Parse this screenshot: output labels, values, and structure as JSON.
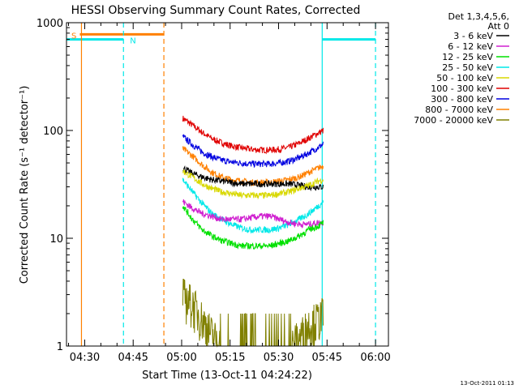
{
  "chart_data": {
    "type": "line",
    "title": "HESSI Observing Summary Count Rates, Corrected",
    "xlabel": "Start Time (13-Oct-11 04:24:22)",
    "ylabel": "Corrected Count Rate (s⁻¹ detector⁻¹)",
    "yscale": "log",
    "ylim": [
      1,
      1000
    ],
    "xlim": [
      "04:24:22",
      "06:04:00"
    ],
    "y_ticks": [
      "1",
      "10",
      "100",
      "1000"
    ],
    "x_ticks": [
      "04:30",
      "04:45",
      "05:00",
      "05:15",
      "05:30",
      "05:45",
      "06:00"
    ],
    "grid": false,
    "legend": {
      "position": "outside-right",
      "header": [
        "Det 1,3,4,5,6,",
        "Att 0"
      ],
      "entries": [
        {
          "label": "3 - 6 keV",
          "color": "#000000"
        },
        {
          "label": "6 - 12 keV",
          "color": "#d020d0"
        },
        {
          "label": "12 - 25 keV",
          "color": "#00e000"
        },
        {
          "label": "25 - 50 keV",
          "color": "#00e8e8"
        },
        {
          "label": "50 - 100 keV",
          "color": "#d8d800"
        },
        {
          "label": "100 - 300 keV",
          "color": "#e00000"
        },
        {
          "label": "300 - 800 keV",
          "color": "#0000e0"
        },
        {
          "label": "800 - 7000 keV",
          "color": "#ff8000"
        },
        {
          "label": "7000 - 20000 keV",
          "color": "#808000"
        }
      ]
    },
    "x_minutes": [
      36,
      39,
      42,
      45,
      48,
      51,
      54,
      57,
      60,
      63,
      66,
      69,
      72,
      75,
      78,
      79.5
    ],
    "series": [
      {
        "name": "100 - 300 keV",
        "color": "#e00000",
        "values": [
          130,
          112,
          96,
          84,
          77,
          72,
          69,
          67,
          66,
          66,
          67,
          70,
          76,
          85,
          95,
          100
        ]
      },
      {
        "name": "300 - 800 keV",
        "color": "#0000e0",
        "values": [
          88,
          74,
          63,
          57,
          53,
          51,
          50,
          49,
          49,
          49,
          50,
          52,
          56,
          62,
          70,
          75
        ]
      },
      {
        "name": "800 - 7000 keV",
        "color": "#ff8000",
        "values": [
          68,
          58,
          48,
          41,
          37,
          35,
          34,
          33,
          33,
          33,
          34,
          35,
          37,
          41,
          45,
          47
        ]
      },
      {
        "name": "3 - 6 keV",
        "color": "#000000",
        "values": [
          45,
          40,
          37,
          35,
          34,
          33,
          32,
          32,
          32,
          32,
          32,
          32,
          31,
          30,
          30,
          30
        ]
      },
      {
        "name": "50 - 100 keV",
        "color": "#d8d800",
        "values": [
          42,
          37,
          32,
          29,
          27,
          26,
          25,
          25,
          25,
          25,
          26,
          27,
          29,
          31,
          34,
          35
        ]
      },
      {
        "name": "25 - 50 keV",
        "color": "#00e8e8",
        "values": [
          35,
          27,
          21,
          17,
          15,
          13.5,
          12.5,
          12,
          12,
          12,
          12.5,
          13.5,
          15,
          17,
          20,
          22
        ]
      },
      {
        "name": "6 - 12 keV",
        "color": "#d020d0",
        "values": [
          22,
          19,
          17,
          16,
          15,
          15,
          15,
          15.5,
          16,
          16,
          15,
          14,
          13.5,
          13.5,
          14,
          14
        ]
      },
      {
        "name": "12 - 25 keV",
        "color": "#00e000",
        "values": [
          20,
          15,
          12,
          10.5,
          9.5,
          9,
          8.5,
          8.5,
          8.5,
          8.5,
          9,
          9.5,
          10.5,
          12,
          13,
          14
        ]
      },
      {
        "name": "7000 - 20000 keV",
        "color": "#808000",
        "values": [
          3,
          2.5,
          1.8,
          1.3,
          1,
          1,
          1,
          1,
          1,
          1,
          1,
          1,
          1.2,
          1.6,
          1.8,
          2
        ]
      }
    ],
    "attenuator_level": {
      "name": "Att",
      "color": "#00e8e8",
      "value": 700,
      "spans": [
        [
          "04:24:22",
          "04:42:00"
        ],
        [
          "05:43:30",
          "06:00:00"
        ]
      ]
    },
    "saa_flag": {
      "label": "S",
      "color": "#ff8000",
      "value": 780,
      "span": [
        "04:28:30",
        "04:54:30"
      ]
    },
    "night_flag": {
      "label": "N",
      "color": "#00e8e8",
      "time": "04:43:00"
    },
    "vertical_markers": [
      {
        "time": "04:29:00",
        "color": "#ff8000",
        "style": "solid"
      },
      {
        "time": "04:42:00",
        "color": "#00e8e8",
        "style": "dashed"
      },
      {
        "time": "04:54:30",
        "color": "#ff8000",
        "style": "dashed"
      },
      {
        "time": "05:43:30",
        "color": "#00e8e8",
        "style": "solid"
      },
      {
        "time": "06:00:00",
        "color": "#00e8e8",
        "style": "dashed"
      }
    ]
  },
  "footer": {
    "timestamp": "13-Oct-2011 01:13"
  }
}
